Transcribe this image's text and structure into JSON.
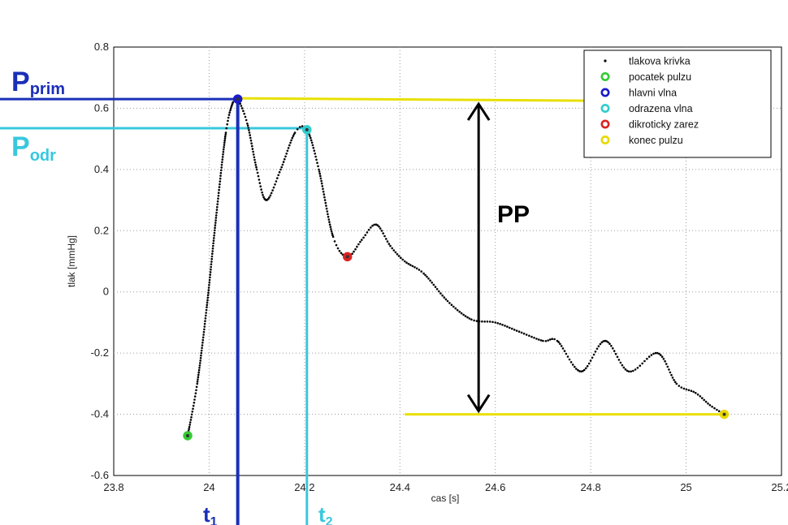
{
  "chart_data": {
    "type": "scatter",
    "xlabel": "cas [s]",
    "ylabel": "tlak [mmHg]",
    "xlim": [
      23.8,
      25.2
    ],
    "ylim": [
      -0.6,
      0.8
    ],
    "x_ticks": [
      "23.8",
      "24",
      "24.2",
      "24.4",
      "24.6",
      "24.8",
      "25",
      "25.2"
    ],
    "y_ticks": [
      "-0.6",
      "-0.4",
      "-0.2",
      "0",
      "0.2",
      "0.4",
      "0.6",
      "0.8"
    ],
    "grid": true,
    "legend_position": "top-right",
    "series": [
      {
        "name": "tlakova krivka",
        "marker": "dot",
        "color": "#000000",
        "x": [
          23.955,
          23.975,
          23.995,
          24.015,
          24.035,
          24.05,
          24.06,
          24.08,
          24.1,
          24.12,
          24.15,
          24.18,
          24.205,
          24.23,
          24.26,
          24.29,
          24.32,
          24.35,
          24.38,
          24.41,
          24.45,
          24.5,
          24.55,
          24.6,
          24.65,
          24.7,
          24.73,
          24.78,
          24.83,
          24.88,
          24.94,
          24.98,
          25.02,
          25.05,
          25.08
        ],
        "y": [
          -0.47,
          -0.3,
          -0.05,
          0.25,
          0.52,
          0.62,
          0.63,
          0.55,
          0.4,
          0.3,
          0.4,
          0.52,
          0.53,
          0.4,
          0.18,
          0.115,
          0.17,
          0.22,
          0.15,
          0.1,
          0.06,
          -0.03,
          -0.09,
          -0.1,
          -0.13,
          -0.16,
          -0.16,
          -0.26,
          -0.16,
          -0.26,
          -0.2,
          -0.3,
          -0.33,
          -0.37,
          -0.4
        ]
      },
      {
        "name": "pocatek pulzu",
        "marker": "circle",
        "color": "#33cc33",
        "x": [
          23.955
        ],
        "y": [
          -0.47
        ]
      },
      {
        "name": "hlavni vlna",
        "marker": "circle",
        "color": "#1a1acc",
        "x": [
          24.06
        ],
        "y": [
          0.63
        ]
      },
      {
        "name": "odrazena vlna",
        "marker": "circle",
        "color": "#33cccc",
        "x": [
          24.205
        ],
        "y": [
          0.53
        ]
      },
      {
        "name": "dikroticky zarez",
        "marker": "circle",
        "color": "#dd2222",
        "x": [
          24.29
        ],
        "y": [
          0.115
        ]
      },
      {
        "name": "konec pulzu",
        "marker": "circle",
        "color": "#e8d800",
        "x": [
          25.08
        ],
        "y": [
          -0.4
        ]
      }
    ],
    "annotations": {
      "p_prim": {
        "main": "P",
        "sub": "prim",
        "color": "#1a2fb8",
        "y": 0.63
      },
      "p_odr": {
        "main": "P",
        "sub": "odr",
        "color": "#38c8de",
        "y": 0.535
      },
      "t1": {
        "main": "t",
        "sub": "1",
        "color": "#1a2fb8",
        "x": 24.06
      },
      "t2": {
        "main": "t",
        "sub": "2",
        "color": "#38c8de",
        "x": 24.205
      },
      "pp": {
        "label": "PP",
        "x": 24.565,
        "y_top": 0.63,
        "y_bottom": -0.4
      },
      "top_yellow_line": {
        "x_start": 24.06,
        "x_end": 24.8,
        "y": 0.63,
        "color": "#e8e000"
      },
      "bottom_yellow_line": {
        "x_start": 24.41,
        "x_end": 25.08,
        "y": -0.4,
        "color": "#e8e000"
      }
    }
  }
}
